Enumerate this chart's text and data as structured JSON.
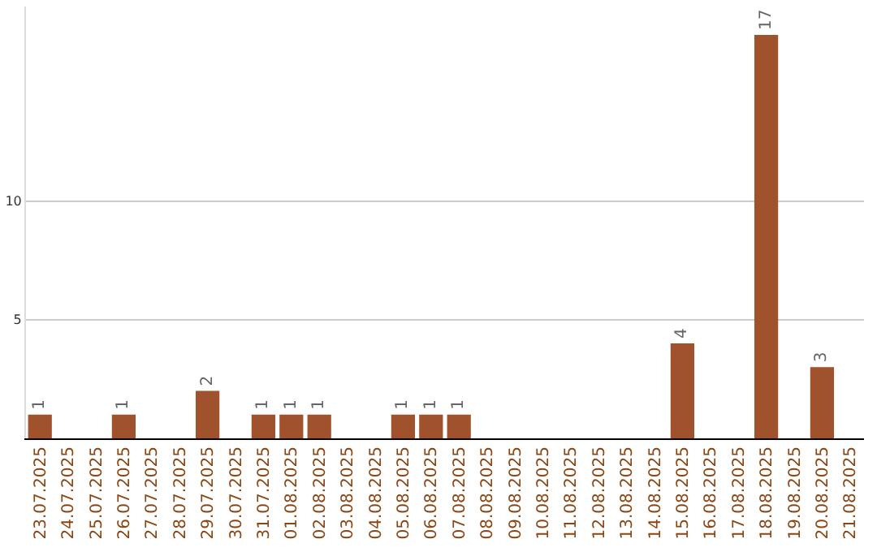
{
  "chart_data": {
    "type": "bar",
    "categories": [
      "23.07.2025",
      "24.07.2025",
      "25.07.2025",
      "26.07.2025",
      "27.07.2025",
      "28.07.2025",
      "29.07.2025",
      "30.07.2025",
      "31.07.2025",
      "01.08.2025",
      "02.08.2025",
      "03.08.2025",
      "04.08.2025",
      "05.08.2025",
      "06.08.2025",
      "07.08.2025",
      "08.08.2025",
      "09.08.2025",
      "10.08.2025",
      "11.08.2025",
      "12.08.2025",
      "13.08.2025",
      "14.08.2025",
      "15.08.2025",
      "16.08.2025",
      "17.08.2025",
      "18.08.2025",
      "19.08.2025",
      "20.08.2025",
      "21.08.2025"
    ],
    "values": [
      1,
      0,
      0,
      1,
      0,
      0,
      2,
      0,
      1,
      1,
      1,
      0,
      0,
      1,
      1,
      1,
      0,
      0,
      0,
      0,
      0,
      0,
      0,
      4,
      0,
      0,
      17,
      0,
      3,
      0
    ],
    "value_labels": [
      "1",
      null,
      null,
      "1",
      null,
      null,
      "2",
      null,
      "1",
      "1",
      "1",
      null,
      null,
      "1",
      "1",
      "1",
      null,
      null,
      null,
      null,
      null,
      null,
      null,
      "4",
      null,
      null,
      "17",
      null,
      "3",
      null
    ],
    "color": "#a0522d",
    "ylim": [
      0,
      18.2
    ],
    "yticks": [
      5,
      10
    ],
    "grid": "y",
    "legend": false
  }
}
